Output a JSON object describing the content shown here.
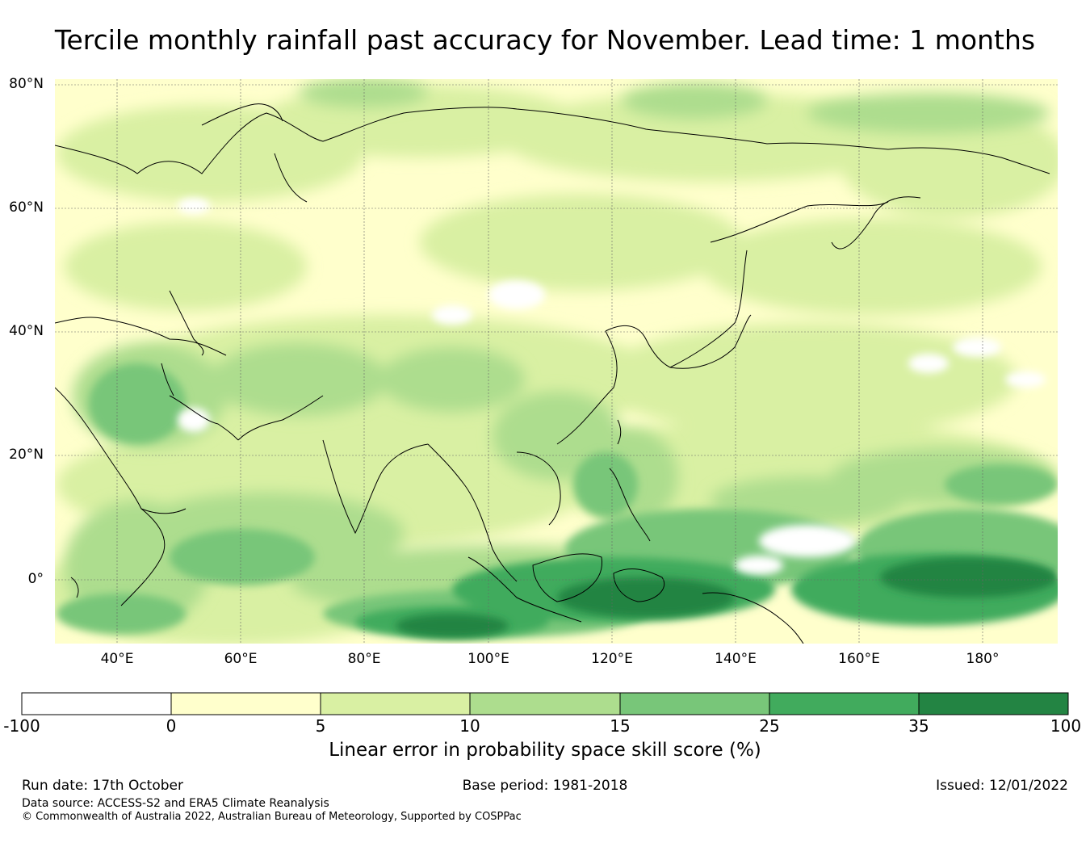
{
  "title": "Tercile monthly rainfall past accuracy for November. Lead time: 1 months",
  "map": {
    "lat_labels": [
      "80°N",
      "60°N",
      "40°N",
      "20°N",
      "0°"
    ],
    "lon_labels": [
      "40°E",
      "60°E",
      "80°E",
      "100°E",
      "120°E",
      "140°E",
      "160°E",
      "180°"
    ],
    "lon_range": [
      30,
      192
    ],
    "lat_range": [
      -10,
      80
    ],
    "projection": "Plate Carrée"
  },
  "colorbar": {
    "ticks": [
      "-100",
      "0",
      "5",
      "10",
      "15",
      "25",
      "35",
      "100"
    ],
    "bins": [
      {
        "from": -100,
        "to": 0,
        "color": "#ffffff"
      },
      {
        "from": 0,
        "to": 5,
        "color": "#ffffcc"
      },
      {
        "from": 5,
        "to": 10,
        "color": "#d9f0a3"
      },
      {
        "from": 10,
        "to": 15,
        "color": "#addd8e"
      },
      {
        "from": 15,
        "to": 25,
        "color": "#78c679"
      },
      {
        "from": 25,
        "to": 35,
        "color": "#41ab5d"
      },
      {
        "from": 35,
        "to": 100,
        "color": "#238443"
      }
    ],
    "label": "Linear error in probability space skill score (%)"
  },
  "footer": {
    "run_date": "Run date: 17th October",
    "base_period": "Base period: 1981-2018",
    "issued": "Issued: 12/01/2022",
    "data_source": "Data source: ACCESS-S2 and ERA5 Climate Reanalysis",
    "copyright": "© Commonwealth of Australia 2022, Australian Bureau of Meteorology, Supported by COSPPac"
  }
}
